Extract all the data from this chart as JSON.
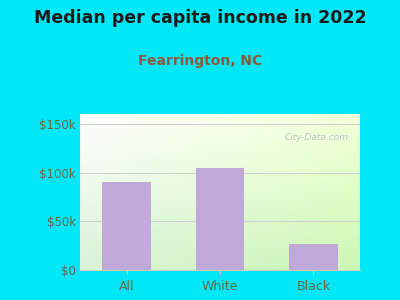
{
  "title": "Median per capita income in 2022",
  "subtitle": "Fearrington, NC",
  "categories": [
    "All",
    "White",
    "Black"
  ],
  "values": [
    90000,
    105000,
    27000
  ],
  "bar_color": "#c0a8d8",
  "ylim": [
    0,
    160000
  ],
  "yticks": [
    0,
    50000,
    100000,
    150000
  ],
  "ytick_labels": [
    "$0",
    "$50k",
    "$100k",
    "$150k"
  ],
  "bg_outer": "#00e8f8",
  "title_color": "#1a1a1a",
  "subtitle_color": "#8b5a3c",
  "axis_label_color": "#666644",
  "watermark": "City-Data.com",
  "title_fontsize": 12.5,
  "subtitle_fontsize": 10,
  "tick_fontsize": 8.5,
  "gradient_top": "#f0faf0",
  "gradient_bottom_left": "#ffffff",
  "gradient_bottom_right": "#c8e8c8",
  "hline_color": "#d0d0d0",
  "bottom_spine_color": "#cccccc"
}
